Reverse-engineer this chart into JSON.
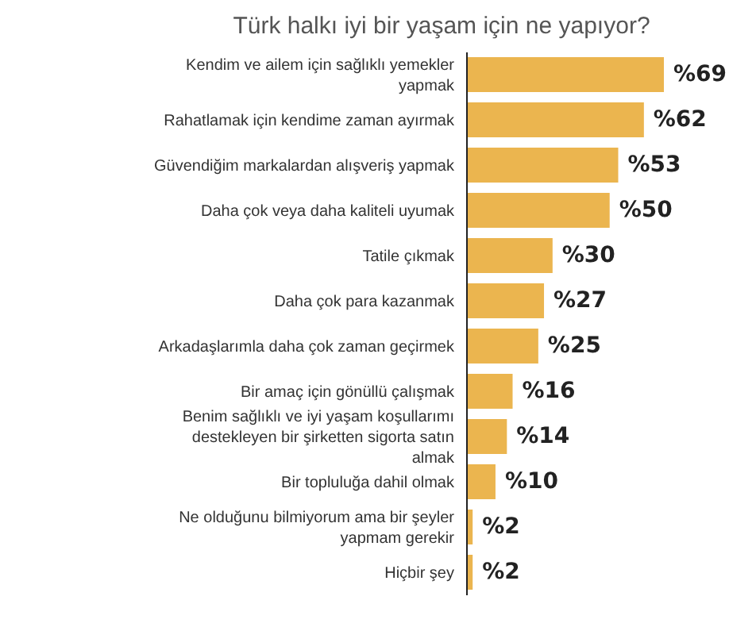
{
  "chart_data": {
    "type": "bar",
    "orientation": "horizontal",
    "title": "Türk halkı iyi bir yaşam için ne yapıyor?",
    "categories": [
      "Kendim ve ailem için sağlıklı yemekler yapmak",
      "Rahatlamak için kendime zaman ayırmak",
      "Güvendiğim markalardan alışveriş yapmak",
      "Daha çok veya daha kaliteli uyumak",
      "Tatile çıkmak",
      "Daha çok para kazanmak",
      "Arkadaşlarımla daha çok zaman geçirmek",
      "Bir amaç için gönüllü çalışmak",
      "Benim sağlıklı ve iyi yaşam koşullarımı destekleyen bir şirketten sigorta satın almak",
      "Bir topluluğa dahil olmak",
      "Ne olduğunu bilmiyorum ama bir şeyler yapmam gerekir",
      "Hiçbir şey"
    ],
    "values": [
      69,
      62,
      53,
      50,
      30,
      27,
      25,
      16,
      14,
      10,
      2,
      2
    ],
    "value_labels": [
      "%69",
      "%62",
      "%53",
      "%50",
      "%30",
      "%27",
      "%25",
      "%16",
      "%14",
      "%10",
      "%2",
      "%2"
    ],
    "color": "#ebb54f"
  }
}
